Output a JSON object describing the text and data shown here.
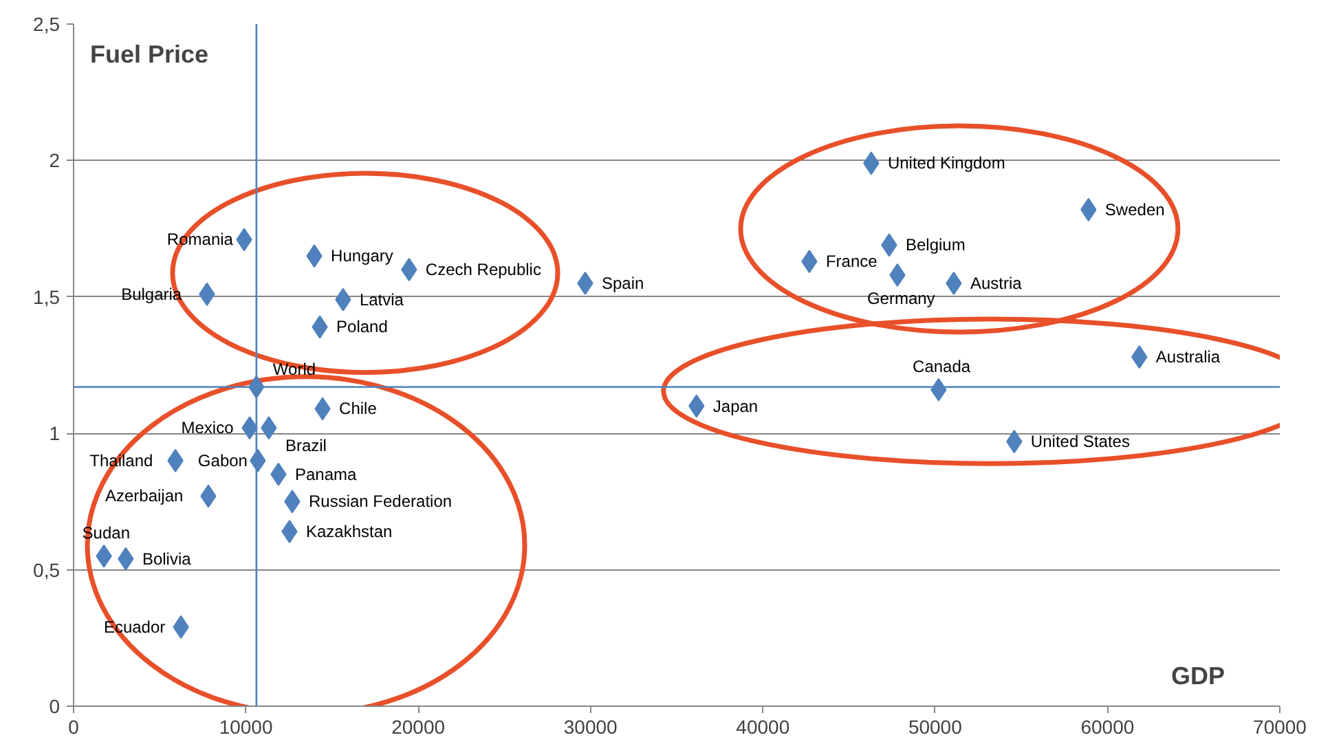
{
  "chart_data": {
    "type": "scatter",
    "xlabel": "GDP",
    "ylabel": "Fuel Price",
    "xlim": [
      0,
      70000
    ],
    "xticks": [
      0,
      10000,
      20000,
      30000,
      40000,
      50000,
      60000,
      70000
    ],
    "ylim": [
      0,
      2.5
    ],
    "yticks": [
      0,
      {
        "value": 0.5,
        "label": "0,5"
      },
      1,
      {
        "value": 1.5,
        "label": "1,5"
      },
      2,
      {
        "value": 2.5,
        "label": "2,5"
      }
    ],
    "grid": "y",
    "marker": "diamond",
    "series": [
      {
        "color": "#4f81bd",
        "x": [
          9900,
          13970,
          19470,
          29690,
          7740,
          15640,
          14290,
          10610,
          10220,
          11330,
          14450,
          5910,
          10690,
          11890,
          7820,
          12690,
          12530,
          1760,
          3030,
          6230,
          36150,
          50200,
          61850,
          54590,
          46290,
          58900,
          47330,
          42700,
          47810,
          51080
        ],
        "values": [
          1.71,
          1.65,
          1.6,
          1.55,
          1.51,
          1.49,
          1.39,
          1.17,
          1.02,
          1.02,
          1.09,
          0.9,
          0.9,
          0.85,
          0.77,
          0.75,
          0.64,
          0.55,
          0.54,
          0.29,
          1.1,
          1.16,
          1.28,
          0.97,
          1.99,
          1.82,
          1.69,
          1.63,
          1.58,
          1.55
        ]
      }
    ],
    "annotations": [
      {
        "text": "Romania",
        "x": 9900,
        "y": 1.71
      },
      {
        "text": "Hungary",
        "x": 13970,
        "y": 1.65
      },
      {
        "text": "Czech Republic",
        "x": 19470,
        "y": 1.6
      },
      {
        "text": "Spain",
        "x": 29690,
        "y": 1.55
      },
      {
        "text": "Bulgaria",
        "x": 7740,
        "y": 1.51
      },
      {
        "text": "Latvia",
        "x": 15640,
        "y": 1.49
      },
      {
        "text": "Poland",
        "x": 14290,
        "y": 1.39
      },
      {
        "text": "World",
        "x": 10610,
        "y": 1.17
      },
      {
        "text": "Mexico",
        "x": 10220,
        "y": 1.02
      },
      {
        "text": "Brazil",
        "x": 11330,
        "y": 1.02
      },
      {
        "text": "Chile",
        "x": 14450,
        "y": 1.09
      },
      {
        "text": "Thailand",
        "x": 5910,
        "y": 0.9
      },
      {
        "text": "Gabon",
        "x": 10690,
        "y": 0.9
      },
      {
        "text": "Panama",
        "x": 11890,
        "y": 0.85
      },
      {
        "text": "Azerbaijan",
        "x": 7820,
        "y": 0.77
      },
      {
        "text": "Russian Federation",
        "x": 12690,
        "y": 0.75
      },
      {
        "text": "Kazakhstan",
        "x": 12530,
        "y": 0.64
      },
      {
        "text": "Sudan",
        "x": 1760,
        "y": 0.55
      },
      {
        "text": "Bolivia",
        "x": 3030,
        "y": 0.54
      },
      {
        "text": "Ecuador",
        "x": 6230,
        "y": 0.29
      },
      {
        "text": "Japan",
        "x": 36150,
        "y": 1.1
      },
      {
        "text": "Canada",
        "x": 50200,
        "y": 1.16
      },
      {
        "text": "Australia",
        "x": 61850,
        "y": 1.28
      },
      {
        "text": "United States",
        "x": 54590,
        "y": 0.97
      },
      {
        "text": "United Kingdom",
        "x": 46290,
        "y": 1.99
      },
      {
        "text": "Sweden",
        "x": 58900,
        "y": 1.82
      },
      {
        "text": "Belgium",
        "x": 47330,
        "y": 1.69
      },
      {
        "text": "France",
        "x": 42700,
        "y": 1.63
      },
      {
        "text": "Germany",
        "x": 47810,
        "y": 1.58
      },
      {
        "text": "Austria",
        "x": 51080,
        "y": 1.55
      }
    ],
    "ref_lines": [
      {
        "axis": "x",
        "value": 10610,
        "color": "#4f81bd"
      },
      {
        "axis": "y",
        "value": 1.17,
        "color": "#4f81bd"
      }
    ]
  }
}
